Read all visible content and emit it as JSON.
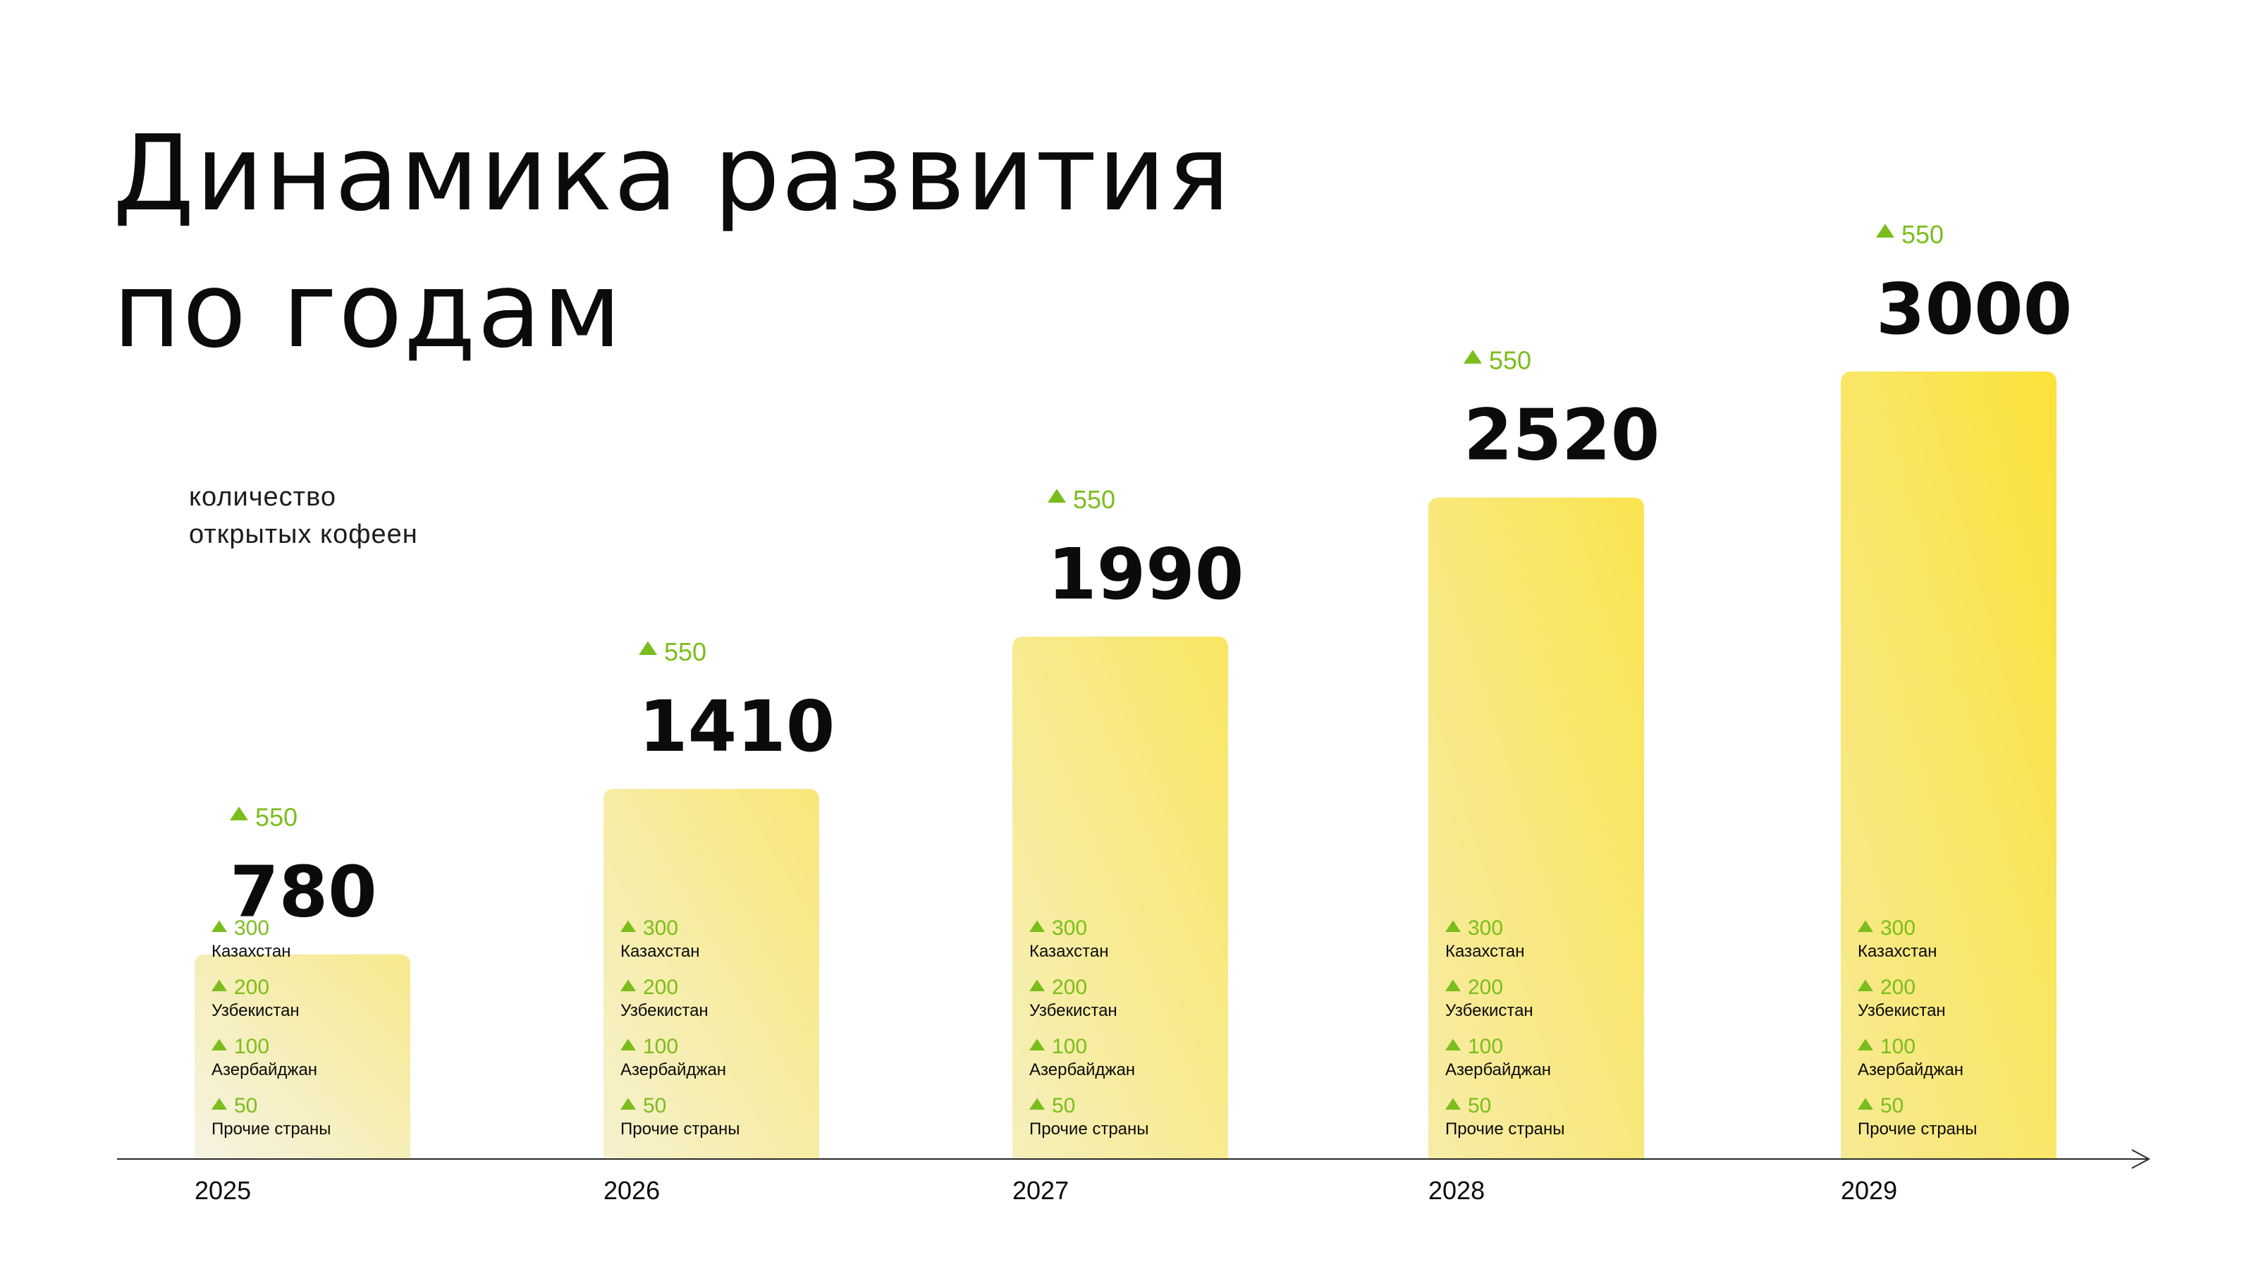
{
  "title": {
    "line1": "Динамика развития",
    "line2": "по годам"
  },
  "subtitle": {
    "line1": "количество",
    "line2": "открытых кофеен"
  },
  "colors": {
    "accent_green": "#7bbd1c",
    "bar_pale": "#f6f3e3",
    "bar_mid": "#f7e98c",
    "bar_bright": "#fbe23a",
    "text_dark": "#0b0b0b",
    "axis": "#2a2a2a"
  },
  "chart_data": {
    "type": "bar",
    "categories": [
      "2025",
      "2026",
      "2027",
      "2028",
      "2029"
    ],
    "values": [
      780,
      1410,
      1990,
      2520,
      3000
    ],
    "growth_labels": [
      "550",
      "550",
      "550",
      "550",
      "550"
    ],
    "breakdown": [
      {
        "country": "Казахстан",
        "values": [
          "300",
          "300",
          "300",
          "300",
          "300"
        ]
      },
      {
        "country": "Узбекистан",
        "values": [
          "200",
          "200",
          "200",
          "200",
          "200"
        ]
      },
      {
        "country": "Азербайджан",
        "values": [
          "100",
          "100",
          "100",
          "100",
          "100"
        ]
      },
      {
        "country": "Прочие страны",
        "values": [
          "50",
          "50",
          "50",
          "50",
          "50"
        ]
      }
    ],
    "ylim": [
      0,
      3000
    ],
    "grid": false,
    "legend": "none"
  }
}
